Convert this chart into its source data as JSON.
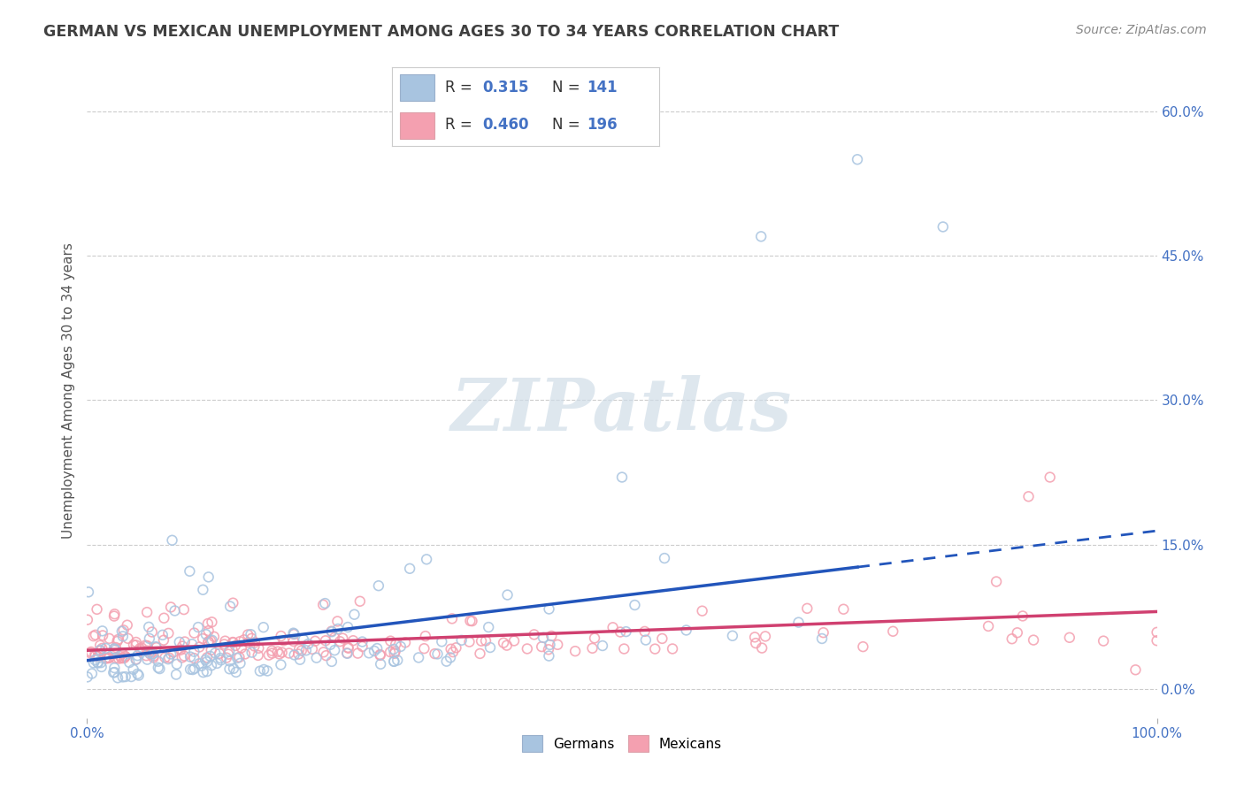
{
  "title": "GERMAN VS MEXICAN UNEMPLOYMENT AMONG AGES 30 TO 34 YEARS CORRELATION CHART",
  "source": "Source: ZipAtlas.com",
  "ylabel": "Unemployment Among Ages 30 to 34 years",
  "xlim": [
    0,
    100
  ],
  "ylim": [
    -3,
    65
  ],
  "ytick_vals": [
    0,
    15,
    30,
    45,
    60
  ],
  "ytick_labels": [
    "0.0%",
    "15.0%",
    "30.0%",
    "45.0%",
    "60.0%"
  ],
  "xtick_vals": [
    0,
    100
  ],
  "xtick_labels": [
    "0.0%",
    "100.0%"
  ],
  "german_R": 0.315,
  "german_N": 141,
  "mexican_R": 0.46,
  "mexican_N": 196,
  "german_color": "#a8c4e0",
  "mexican_color": "#f4a0b0",
  "german_line_color": "#2255bb",
  "mexican_line_color": "#d04070",
  "watermark_text": "ZIPatlas",
  "watermark_color": "#d0dde8",
  "background_color": "#ffffff",
  "grid_color": "#cccccc",
  "title_color": "#404040",
  "tick_color": "#4472c4",
  "source_color": "#888888",
  "legend_val_color": "#4472c4",
  "legend_label_color": "#333333"
}
